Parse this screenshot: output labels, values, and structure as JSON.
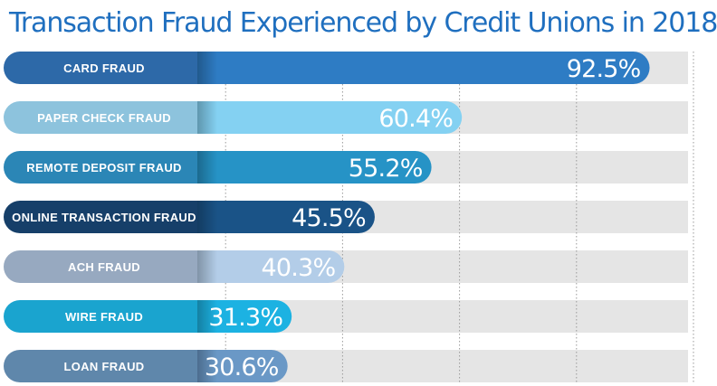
{
  "title": "Transaction Fraud Experienced by Credit Unions in 2018",
  "chart_data": {
    "type": "bar",
    "orientation": "horizontal",
    "title": "Transaction Fraud Experienced by Credit Unions in 2018",
    "xlabel": "",
    "ylabel": "",
    "xlim": [
      0,
      100
    ],
    "grid": true,
    "categories": [
      "CARD FRAUD",
      "PAPER CHECK FRAUD",
      "REMOTE DEPOSIT FRAUD",
      "ONLINE TRANSACTION FRAUD",
      "ACH FRAUD",
      "WIRE FRAUD",
      "LOAN FRAUD"
    ],
    "values": [
      92.5,
      60.4,
      55.2,
      45.5,
      40.3,
      31.3,
      30.6
    ],
    "value_labels": [
      "92.5%",
      "60.4%",
      "55.2%",
      "45.5%",
      "40.3%",
      "31.3%",
      "30.6%"
    ],
    "colors": {
      "label_segments": [
        "#2d69a8",
        "#8dc3dd",
        "#2b86b6",
        "#163f69",
        "#97a9c0",
        "#1aa4cf",
        "#5f87ab"
      ],
      "bars": [
        "#2e7cc4",
        "#84d1f2",
        "#2693c6",
        "#1a5387",
        "#b3cde8",
        "#1cb2e2",
        "#6a98c6"
      ],
      "track": "#e5e5e5",
      "gridline": "#9a9a9a",
      "title": "#1f6fbf"
    }
  }
}
